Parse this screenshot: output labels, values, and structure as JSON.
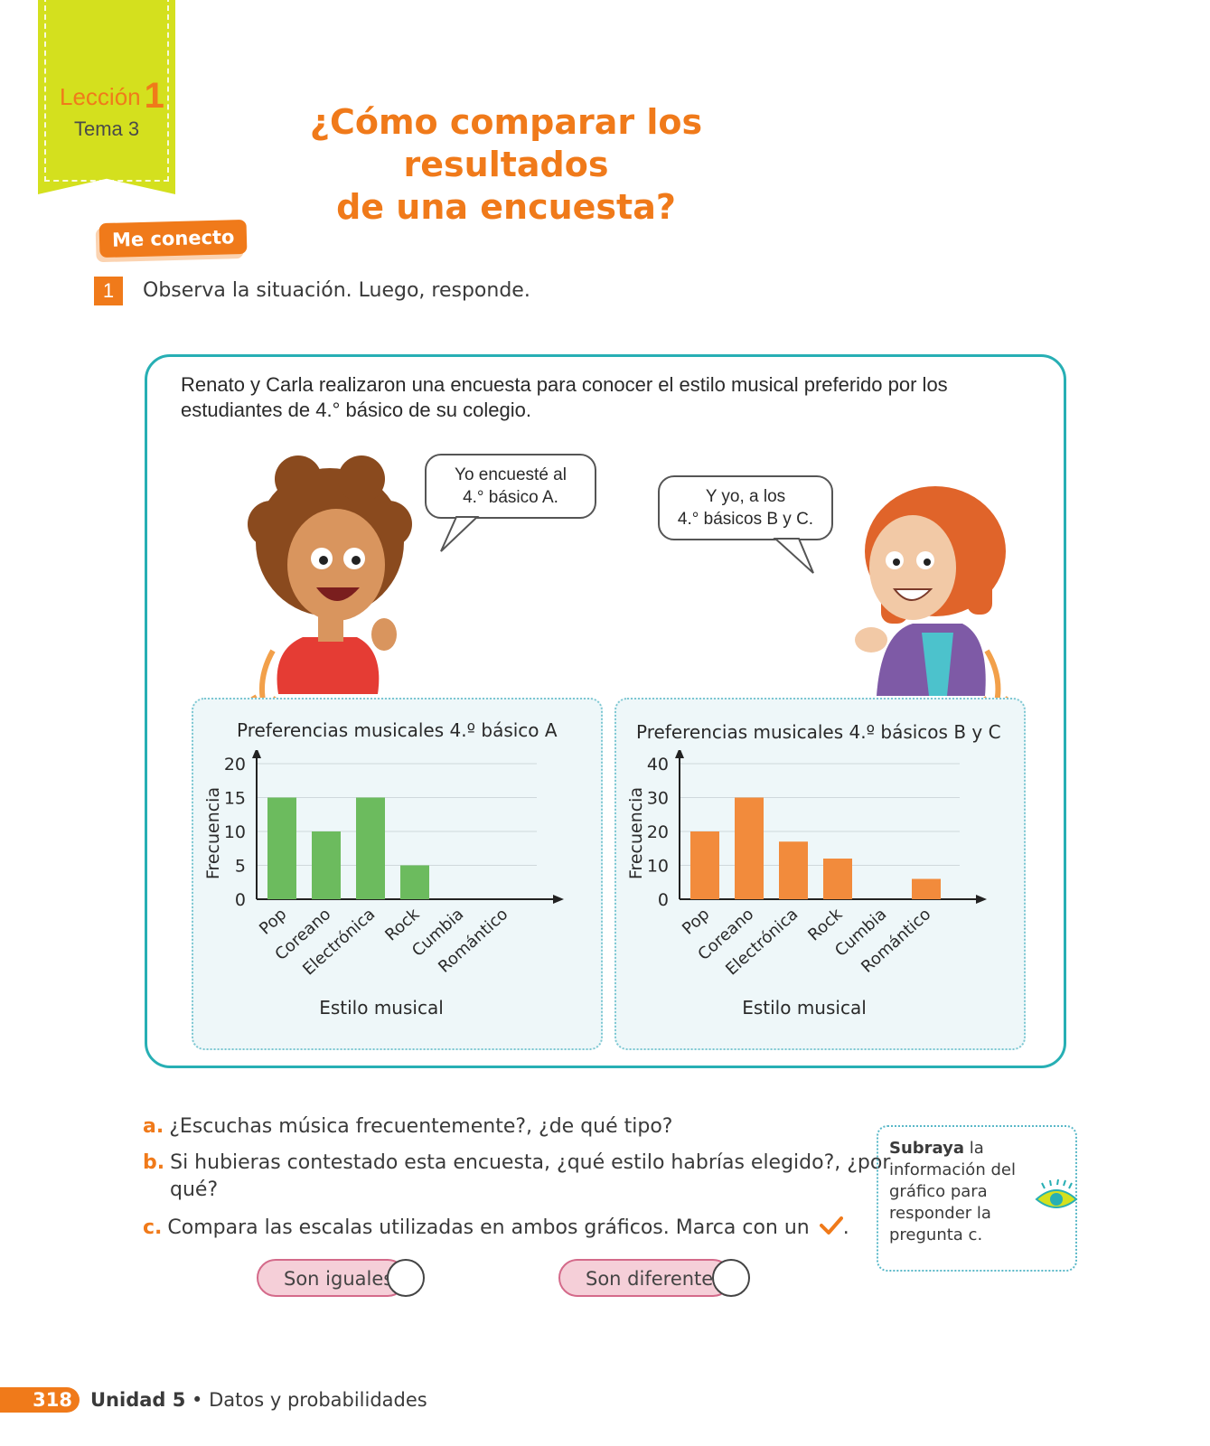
{
  "header": {
    "lesson_label": "Lección",
    "lesson_number": "1",
    "topic": "Tema 3",
    "title_line1": "¿Cómo comparar los resultados",
    "title_line2": "de una encuesta?"
  },
  "section_tag": "Me conecto",
  "item": {
    "number": "1",
    "text": "Observa la situación. Luego, responde."
  },
  "scene": {
    "intro": "Renato y Carla realizaron una encuesta para conocer el estilo musical preferido por los estudiantes de 4.° básico de su colegio.",
    "bubble_boy": [
      "Yo encuesté al",
      "4.° básico A."
    ],
    "bubble_girl": [
      "Y yo, a los",
      "4.° básicos B y C."
    ]
  },
  "chart_data": [
    {
      "type": "bar",
      "title": "Preferencias musicales 4.º básico A",
      "xlabel": "Estilo musical",
      "ylabel": "Frecuencia",
      "categories": [
        "Pop",
        "Coreano",
        "Electrónica",
        "Rock",
        "Cumbia",
        "Romántico"
      ],
      "values": [
        15,
        10,
        15,
        5,
        0,
        0
      ],
      "ylim": [
        0,
        20
      ],
      "yticks": [
        0,
        5,
        10,
        15,
        20
      ],
      "color": "#6cbb5e",
      "grid": true
    },
    {
      "type": "bar",
      "title": "Preferencias musicales 4.º básicos B y C",
      "xlabel": "Estilo musical",
      "ylabel": "Frecuencia",
      "categories": [
        "Pop",
        "Coreano",
        "Electrónica",
        "Rock",
        "Cumbia",
        "Romántico"
      ],
      "values": [
        20,
        30,
        17,
        12,
        0,
        6
      ],
      "ylim": [
        0,
        40
      ],
      "yticks": [
        0,
        10,
        20,
        30,
        40
      ],
      "color": "#f28b3c",
      "grid": true
    }
  ],
  "questions": {
    "a": {
      "letter": "a.",
      "text": "¿Escuchas música frecuentemente?, ¿de qué tipo?"
    },
    "b": {
      "letter": "b.",
      "text": "Si hubieras contestado esta encuesta, ¿qué estilo habrías elegido?, ¿por qué?"
    },
    "c": {
      "letter": "c.",
      "text": "Compara las escalas utilizadas en ambos gráficos. Marca con un",
      "end": "."
    }
  },
  "options": [
    "Son iguales",
    "Son diferentes"
  ],
  "tip": {
    "bold": "Subraya",
    "text": "la información del gráfico para responder la pregunta c."
  },
  "footer": {
    "page": "318",
    "unit": "Unidad 5",
    "separator": "•",
    "subject": "Datos y probabilidades"
  },
  "colors": {
    "accent": "#f07a1a",
    "teal": "#27afb4",
    "ribbon": "#d4e01e"
  }
}
